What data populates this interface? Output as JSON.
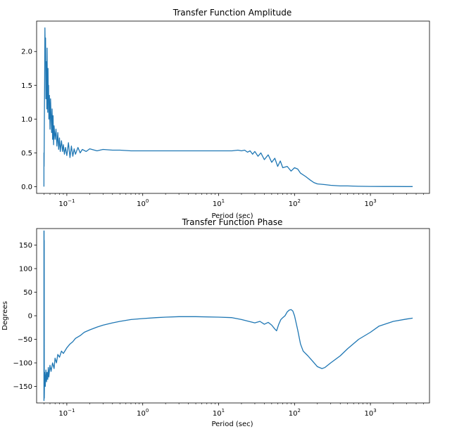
{
  "chart_data": [
    {
      "type": "line",
      "title": "Transfer Function Amplitude",
      "xlabel": "Period (sec)",
      "ylabel": "",
      "xscale": "log",
      "xlim": [
        0.04,
        6000
      ],
      "ylim": [
        -0.1,
        2.45
      ],
      "xticks": [
        {
          "value": 0.1,
          "base": "10",
          "exp": "−1"
        },
        {
          "value": 1,
          "base": "10",
          "exp": "0"
        },
        {
          "value": 10,
          "base": "10",
          "exp": "1"
        },
        {
          "value": 100,
          "base": "10",
          "exp": "2"
        },
        {
          "value": 1000,
          "base": "10",
          "exp": "3"
        }
      ],
      "yticks": [
        {
          "value": 0,
          "label": "0.0"
        },
        {
          "value": 0.5,
          "label": "0.5"
        },
        {
          "value": 1.0,
          "label": "1.0"
        },
        {
          "value": 1.5,
          "label": "1.5"
        },
        {
          "value": 2.0,
          "label": "2.0"
        }
      ],
      "grid": false,
      "series": [
        {
          "color": "#1f77b4",
          "x": [
            0.05,
            0.05,
            0.0502,
            0.0505,
            0.051,
            0.0515,
            0.052,
            0.0525,
            0.053,
            0.0535,
            0.054,
            0.0545,
            0.055,
            0.0555,
            0.056,
            0.0565,
            0.057,
            0.0575,
            0.058,
            0.059,
            0.06,
            0.061,
            0.062,
            0.063,
            0.064,
            0.065,
            0.066,
            0.067,
            0.068,
            0.07,
            0.072,
            0.074,
            0.076,
            0.078,
            0.08,
            0.082,
            0.085,
            0.088,
            0.09,
            0.093,
            0.096,
            0.1,
            0.105,
            0.11,
            0.115,
            0.12,
            0.125,
            0.13,
            0.14,
            0.15,
            0.16,
            0.18,
            0.2,
            0.25,
            0.3,
            0.4,
            0.5,
            0.7,
            1,
            2,
            3,
            5,
            10,
            15,
            18,
            20,
            22,
            24,
            26,
            28,
            30,
            33,
            36,
            40,
            45,
            50,
            55,
            60,
            65,
            70,
            80,
            90,
            100,
            110,
            120,
            140,
            160,
            180,
            200,
            250,
            300,
            400,
            500,
            700,
            1000,
            1500,
            2000,
            3000,
            3600
          ],
          "y": [
            0.0,
            0.5,
            0.3,
            0.82,
            1.55,
            2.35,
            1.9,
            2.2,
            1.3,
            1.6,
            1.85,
            1.15,
            2.05,
            1.4,
            1.1,
            1.75,
            1.3,
            1.5,
            1.0,
            1.35,
            0.85,
            1.3,
            1.05,
            0.8,
            1.15,
            0.7,
            1.05,
            0.62,
            0.9,
            0.7,
            0.85,
            0.6,
            0.8,
            0.55,
            0.72,
            0.52,
            0.68,
            0.52,
            0.62,
            0.48,
            0.58,
            0.46,
            0.65,
            0.43,
            0.6,
            0.45,
            0.56,
            0.48,
            0.58,
            0.5,
            0.55,
            0.52,
            0.56,
            0.53,
            0.55,
            0.54,
            0.54,
            0.53,
            0.53,
            0.53,
            0.53,
            0.53,
            0.53,
            0.53,
            0.54,
            0.53,
            0.54,
            0.51,
            0.53,
            0.48,
            0.52,
            0.45,
            0.5,
            0.4,
            0.47,
            0.36,
            0.42,
            0.3,
            0.38,
            0.28,
            0.3,
            0.23,
            0.28,
            0.26,
            0.2,
            0.15,
            0.1,
            0.06,
            0.04,
            0.03,
            0.02,
            0.01,
            0.01,
            0.005,
            0.003,
            0.002,
            0.002,
            0.001,
            0.001
          ]
        }
      ]
    },
    {
      "type": "line",
      "title": "Transfer Function Phase",
      "xlabel": "Period (sec)",
      "ylabel": "Degrees",
      "xscale": "log",
      "xlim": [
        0.04,
        6000
      ],
      "ylim": [
        -185,
        185
      ],
      "xticks": [
        {
          "value": 0.1,
          "base": "10",
          "exp": "−1"
        },
        {
          "value": 1,
          "base": "10",
          "exp": "0"
        },
        {
          "value": 10,
          "base": "10",
          "exp": "1"
        },
        {
          "value": 100,
          "base": "10",
          "exp": "2"
        },
        {
          "value": 1000,
          "base": "10",
          "exp": "3"
        }
      ],
      "yticks": [
        {
          "value": -150,
          "label": "−150"
        },
        {
          "value": -100,
          "label": "−100"
        },
        {
          "value": -50,
          "label": "−50"
        },
        {
          "value": 0,
          "label": "0"
        },
        {
          "value": 50,
          "label": "50"
        },
        {
          "value": 100,
          "label": "100"
        },
        {
          "value": 150,
          "label": "150"
        }
      ],
      "grid": false,
      "series": [
        {
          "color": "#1f77b4",
          "x": [
            0.05,
            0.05,
            0.0501,
            0.0502,
            0.0503,
            0.0504,
            0.0505,
            0.051,
            0.052,
            0.053,
            0.054,
            0.055,
            0.056,
            0.057,
            0.058,
            0.06,
            0.062,
            0.065,
            0.068,
            0.07,
            0.073,
            0.076,
            0.08,
            0.085,
            0.09,
            0.1,
            0.11,
            0.12,
            0.13,
            0.15,
            0.17,
            0.2,
            0.25,
            0.3,
            0.4,
            0.5,
            0.7,
            1,
            1.5,
            2,
            3,
            5,
            10,
            15,
            20,
            25,
            30,
            35,
            40,
            45,
            50,
            55,
            58,
            62,
            66,
            70,
            75,
            80,
            85,
            90,
            95,
            100,
            110,
            120,
            130,
            150,
            170,
            200,
            230,
            250,
            300,
            400,
            500,
            700,
            1000,
            1300,
            2000,
            3000,
            3600
          ],
          "y": [
            -180,
            180,
            -180,
            180,
            -160,
            160,
            -175,
            -120,
            -150,
            -115,
            -140,
            -120,
            -135,
            -110,
            -130,
            -105,
            -118,
            -100,
            -112,
            -90,
            -100,
            -82,
            -88,
            -75,
            -80,
            -68,
            -60,
            -55,
            -48,
            -42,
            -35,
            -30,
            -24,
            -20,
            -15,
            -12,
            -8,
            -6,
            -4,
            -3,
            -2,
            -2,
            -3,
            -4,
            -8,
            -12,
            -15,
            -12,
            -18,
            -14,
            -20,
            -28,
            -32,
            -18,
            -8,
            -4,
            0,
            8,
            12,
            13,
            10,
            0,
            -30,
            -60,
            -75,
            -85,
            -95,
            -108,
            -112,
            -110,
            -100,
            -85,
            -70,
            -50,
            -35,
            -22,
            -12,
            -7,
            -5
          ]
        }
      ]
    }
  ]
}
